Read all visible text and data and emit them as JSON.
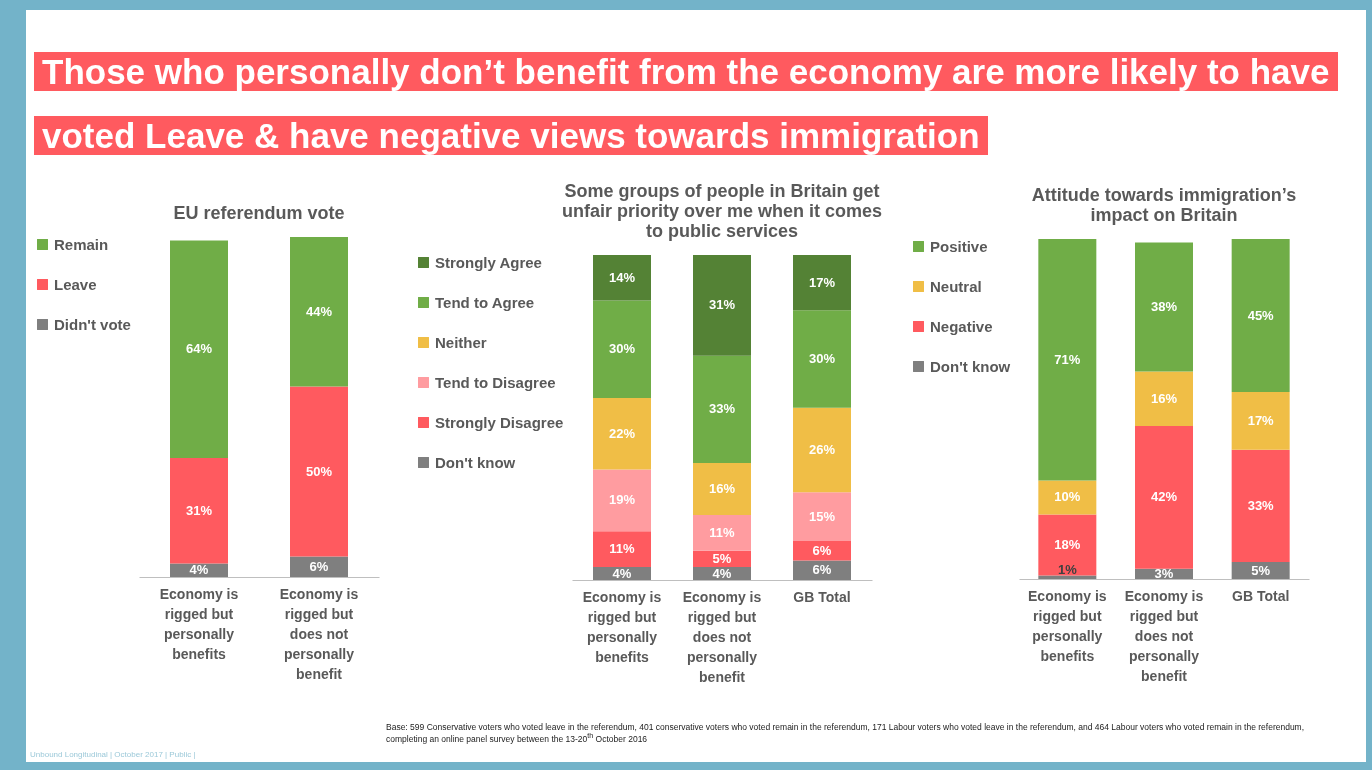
{
  "chart_data": [
    {
      "type": "other",
      "title": "Those who personally don’t benefit from the economy are more likely to have voted Leave & have negative views towards immigration",
      "annotations": [
        "Base: 599 Conservative voters who voted leave in the referendum, 401 conservative voters who voted remain in the referendum, 171 Labour voters who voted leave in the referendum, and 464 Labour voters who voted remain in the referendum, completing an online panel survey between the 13-20$^{th}$ October 2016",
        "Unbound Longitudinal | October 2017 | Public |"
      ]
    },
    {
      "type": "bar",
      "stacked": true,
      "legend": "left",
      "title": "EU referendum vote",
      "categories": [
        "Economy is rigged but personally benefits",
        "Economy is rigged but does not personally benefit"
      ],
      "series": [
        {
          "name": "Didn't vote",
          "color": "#7f7f7f",
          "values": [
            4,
            6
          ],
          "value_labels": [
            "4%",
            "6%"
          ]
        },
        {
          "name": "Leave",
          "color": "#ff5a5f",
          "values": [
            31,
            50
          ],
          "value_labels": [
            "31%",
            "50%"
          ]
        },
        {
          "name": "Remain",
          "color": "#70ad47",
          "values": [
            64,
            44
          ],
          "value_labels": [
            "64%",
            "44%"
          ]
        }
      ]
    },
    {
      "type": "bar",
      "stacked": true,
      "legend": "left",
      "title": "Some groups of people in Britain get unfair priority over me when it comes to public services",
      "categories": [
        "Economy is rigged but personally benefits",
        "Economy is rigged but does not personally benefit",
        "GB Total"
      ],
      "series": [
        {
          "name": "Don't know",
          "color": "#7f7f7f",
          "values": [
            4,
            4,
            6
          ],
          "value_labels": [
            "4%",
            "4%",
            "6%"
          ]
        },
        {
          "name": "Strongly Disagree",
          "color": "#ff5a5f",
          "values": [
            11,
            5,
            6
          ],
          "value_labels": [
            "11%",
            "5%",
            "6%"
          ]
        },
        {
          "name": "Tend to Disagree",
          "color": "#ff9ca0",
          "values": [
            19,
            11,
            15
          ],
          "value_labels": [
            "19%",
            "11%",
            "15%"
          ]
        },
        {
          "name": "Neither",
          "color": "#f0be46",
          "values": [
            22,
            16,
            26
          ],
          "value_labels": [
            "22%",
            "16%",
            "26%"
          ]
        },
        {
          "name": "Tend to Agree",
          "color": "#70ad47",
          "values": [
            30,
            33,
            30
          ],
          "value_labels": [
            "30%",
            "33%",
            "30%"
          ]
        },
        {
          "name": "Strongly Agree",
          "color": "#548235",
          "values": [
            14,
            31,
            17
          ],
          "value_labels": [
            "14%",
            "31%",
            "17%"
          ]
        }
      ]
    },
    {
      "type": "bar",
      "stacked": true,
      "legend": "left",
      "title": "Attitude towards immigration’s impact on Britain",
      "categories": [
        "Economy is rigged but personally benefits",
        "Economy is rigged but does not personally benefit",
        "GB Total"
      ],
      "series": [
        {
          "name": "Don't know",
          "color": "#7f7f7f",
          "values": [
            1,
            3,
            5
          ],
          "value_labels": [
            "1%",
            "3%",
            "5%"
          ]
        },
        {
          "name": "Negative",
          "color": "#ff5a5f",
          "values": [
            18,
            42,
            33
          ],
          "value_labels": [
            "18%",
            "42%",
            "33%"
          ]
        },
        {
          "name": "Neutral",
          "color": "#f0be46",
          "values": [
            10,
            16,
            17
          ],
          "value_labels": [
            "10%",
            "16%",
            "17%"
          ]
        },
        {
          "name": "Positive",
          "color": "#70ad47",
          "values": [
            71,
            38,
            45
          ],
          "value_labels": [
            "71%",
            "38%",
            "45%"
          ]
        }
      ]
    }
  ]
}
